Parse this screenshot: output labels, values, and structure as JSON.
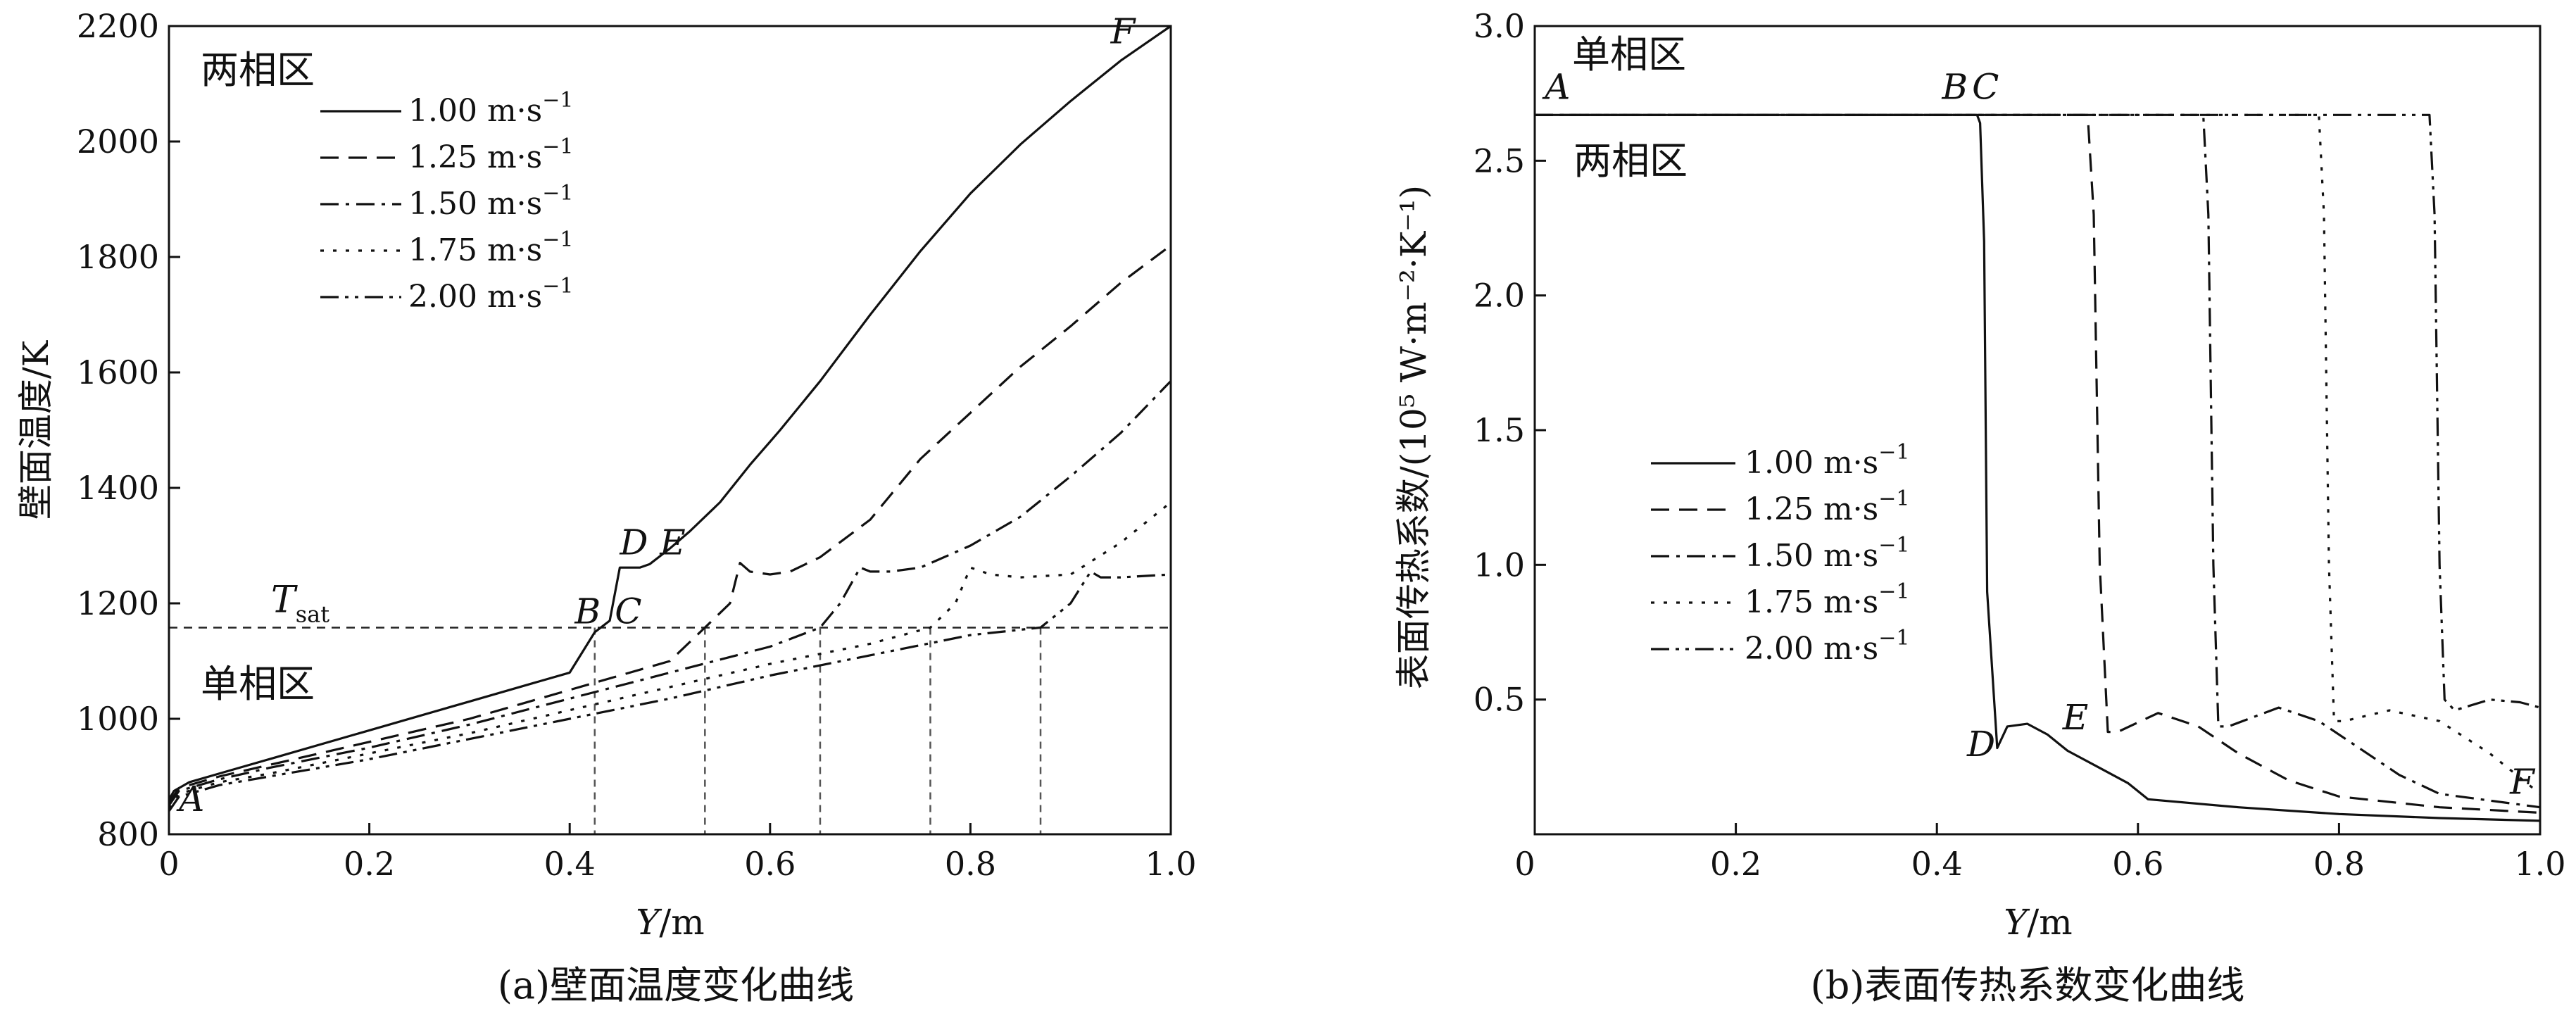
{
  "chart_data": [
    {
      "type": "line",
      "caption": "(a)壁面温度变化曲线",
      "xlabel_var": "Y",
      "xlabel_unit": "/m",
      "ylabel": "壁面温度/K",
      "xlim": [
        0,
        1.0
      ],
      "ylim": [
        800,
        2200
      ],
      "xticks": [
        "0",
        "0.2",
        "0.4",
        "0.6",
        "0.8",
        "1.0"
      ],
      "yticks": [
        "800",
        "1000",
        "1200",
        "1400",
        "1600",
        "1800",
        "2000",
        "2200"
      ],
      "legend_placement": "top-left",
      "regions": {
        "upper": "两相区",
        "lower": "单相区"
      },
      "reference_line": {
        "label_main": "T",
        "label_sub": "sat",
        "y": 1158
      },
      "point_labels": [
        {
          "text": "A",
          "x": 0.01,
          "y": 840
        },
        {
          "text": "B",
          "x": 0.405,
          "y": 1165
        },
        {
          "text": "C",
          "x": 0.445,
          "y": 1165
        },
        {
          "text": "D",
          "x": 0.45,
          "y": 1285
        },
        {
          "text": "E",
          "x": 0.49,
          "y": 1285
        },
        {
          "text": "F",
          "x": 0.94,
          "y": 2170
        }
      ],
      "drop_lines_x": [
        0.425,
        0.535,
        0.65,
        0.76,
        0.87
      ],
      "series": [
        {
          "name": "1.00 m·s",
          "unit_exp": "−1",
          "dash": "",
          "x": [
            0,
            0.005,
            0.02,
            0.05,
            0.1,
            0.2,
            0.3,
            0.4,
            0.425,
            0.44,
            0.45,
            0.455,
            0.47,
            0.48,
            0.5,
            0.52,
            0.55,
            0.58,
            0.6,
            0.61,
            0.65,
            0.7,
            0.75,
            0.8,
            0.85,
            0.9,
            0.95,
            1.0
          ],
          "y": [
            860,
            875,
            890,
            905,
            930,
            980,
            1030,
            1080,
            1150,
            1170,
            1262,
            1262,
            1262,
            1268,
            1295,
            1325,
            1375,
            1440,
            1480,
            1500,
            1585,
            1700,
            1810,
            1910,
            1995,
            2070,
            2140,
            2200
          ]
        },
        {
          "name": "1.25 m·s",
          "unit_exp": "−1",
          "dash": "26,14",
          "x": [
            0,
            0.01,
            0.05,
            0.1,
            0.2,
            0.3,
            0.4,
            0.5,
            0.535,
            0.56,
            0.57,
            0.58,
            0.6,
            0.62,
            0.65,
            0.7,
            0.75,
            0.8,
            0.85,
            0.9,
            0.95,
            1.0
          ],
          "y": [
            855,
            880,
            900,
            920,
            960,
            1000,
            1050,
            1100,
            1158,
            1200,
            1270,
            1255,
            1250,
            1255,
            1280,
            1345,
            1450,
            1530,
            1610,
            1680,
            1755,
            1820
          ]
        },
        {
          "name": "1.50 m·s",
          "unit_exp": "−1",
          "dash": "26,10,5,10",
          "x": [
            0,
            0.01,
            0.05,
            0.1,
            0.2,
            0.3,
            0.4,
            0.5,
            0.6,
            0.65,
            0.67,
            0.69,
            0.7,
            0.72,
            0.75,
            0.8,
            0.85,
            0.9,
            0.95,
            1.0
          ],
          "y": [
            850,
            875,
            895,
            915,
            950,
            990,
            1035,
            1080,
            1125,
            1158,
            1200,
            1262,
            1255,
            1255,
            1262,
            1300,
            1350,
            1420,
            1495,
            1585
          ]
        },
        {
          "name": "1.75 m·s",
          "unit_exp": "−1",
          "dash": "5,13",
          "x": [
            0,
            0.01,
            0.05,
            0.1,
            0.2,
            0.3,
            0.4,
            0.5,
            0.6,
            0.7,
            0.76,
            0.785,
            0.8,
            0.82,
            0.85,
            0.9,
            0.95,
            1.0
          ],
          "y": [
            845,
            870,
            890,
            905,
            940,
            975,
            1015,
            1055,
            1095,
            1130,
            1158,
            1200,
            1262,
            1250,
            1245,
            1250,
            1305,
            1375
          ]
        },
        {
          "name": "2.00 m·s",
          "unit_exp": "−1",
          "dash": "26,9,5,9,5,9",
          "x": [
            0,
            0.01,
            0.05,
            0.1,
            0.2,
            0.3,
            0.4,
            0.5,
            0.6,
            0.7,
            0.8,
            0.87,
            0.9,
            0.92,
            0.93,
            0.95,
            1.0
          ],
          "y": [
            840,
            865,
            885,
            900,
            930,
            965,
            1000,
            1035,
            1075,
            1110,
            1145,
            1158,
            1200,
            1255,
            1245,
            1245,
            1250
          ]
        }
      ]
    },
    {
      "type": "line",
      "caption": "(b)表面传热系数变化曲线",
      "xlabel_var": "Y",
      "xlabel_unit": "/m",
      "ylabel": "表面传热系数/(10⁵ W·m⁻²·K⁻¹)",
      "xlim": [
        0,
        1.0
      ],
      "ylim": [
        0,
        3.0
      ],
      "xticks": [
        "0",
        "0.2",
        "0.4",
        "0.6",
        "0.8",
        "1.0"
      ],
      "yticks": [
        "0.5",
        "1.0",
        "1.5",
        "2.0",
        "2.5",
        "3.0"
      ],
      "origin_label": "0",
      "legend_placement": "center-left",
      "regions": {
        "upper": "单相区",
        "lower": "两相区"
      },
      "point_labels": [
        {
          "text": "A",
          "x": 0.01,
          "y": 2.73
        },
        {
          "text": "B",
          "x": 0.405,
          "y": 2.73
        },
        {
          "text": "C",
          "x": 0.435,
          "y": 2.73
        },
        {
          "text": "D",
          "x": 0.43,
          "y": 0.29
        },
        {
          "text": "E",
          "x": 0.525,
          "y": 0.39
        },
        {
          "text": "F",
          "x": 0.97,
          "y": 0.15
        }
      ],
      "series": [
        {
          "name": "1.00 m·s",
          "unit_exp": "−1",
          "dash": "",
          "x": [
            0,
            0.435,
            0.44,
            0.443,
            0.447,
            0.45,
            0.46,
            0.47,
            0.49,
            0.51,
            0.53,
            0.56,
            0.59,
            0.61,
            0.7,
            0.8,
            0.9,
            1.0
          ],
          "y": [
            2.67,
            2.67,
            2.67,
            2.64,
            2.2,
            0.9,
            0.32,
            0.4,
            0.41,
            0.37,
            0.31,
            0.25,
            0.19,
            0.13,
            0.1,
            0.075,
            0.06,
            0.05
          ]
        },
        {
          "name": "1.25 m·s",
          "unit_exp": "−1",
          "dash": "26,14",
          "x": [
            0,
            0.55,
            0.556,
            0.562,
            0.57,
            0.58,
            0.62,
            0.66,
            0.7,
            0.75,
            0.8,
            0.9,
            1.0
          ],
          "y": [
            2.67,
            2.67,
            2.3,
            1.0,
            0.38,
            0.38,
            0.45,
            0.4,
            0.3,
            0.2,
            0.14,
            0.1,
            0.08
          ]
        },
        {
          "name": "1.50 m·s",
          "unit_exp": "−1",
          "dash": "26,10,5,10",
          "x": [
            0,
            0.665,
            0.67,
            0.675,
            0.68,
            0.69,
            0.74,
            0.78,
            0.82,
            0.86,
            0.9,
            1.0
          ],
          "y": [
            2.67,
            2.67,
            2.3,
            1.0,
            0.4,
            0.4,
            0.47,
            0.42,
            0.32,
            0.22,
            0.15,
            0.1
          ]
        },
        {
          "name": "1.75 m·s",
          "unit_exp": "−1",
          "dash": "5,13",
          "x": [
            0,
            0.78,
            0.785,
            0.79,
            0.795,
            0.805,
            0.85,
            0.9,
            0.95,
            1.0
          ],
          "y": [
            2.67,
            2.67,
            2.3,
            1.0,
            0.42,
            0.42,
            0.46,
            0.42,
            0.3,
            0.15
          ]
        },
        {
          "name": "2.00 m·s",
          "unit_exp": "−1",
          "dash": "26,9,5,9,5,9",
          "x": [
            0,
            0.89,
            0.895,
            0.9,
            0.905,
            0.915,
            0.95,
            0.98,
            1.0
          ],
          "y": [
            2.67,
            2.67,
            2.3,
            1.0,
            0.5,
            0.46,
            0.5,
            0.49,
            0.47
          ]
        }
      ]
    }
  ]
}
